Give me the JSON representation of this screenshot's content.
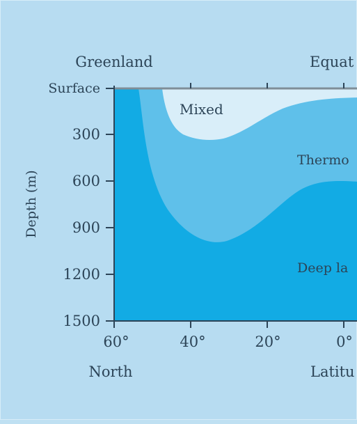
{
  "top_labels": {
    "left": "Greenland",
    "right": "Equat"
  },
  "y_axis": {
    "label": "Depth (m)",
    "ticks": [
      "Surface",
      "300",
      "600",
      "900",
      "1200",
      "1500"
    ]
  },
  "x_axis": {
    "ticks": [
      "60°",
      "40°",
      "20°",
      "0°"
    ],
    "bottom_left": "North",
    "bottom_right": "Latitu"
  },
  "layers": [
    {
      "name": "mixed",
      "label": "Mixed",
      "color": "#d9eef9"
    },
    {
      "name": "thermocline",
      "label": "Thermo",
      "color": "#5fc0ea"
    },
    {
      "name": "deep",
      "label": "Deep la",
      "color": "#12abe4"
    }
  ],
  "colors": {
    "background": "#b7dcf1",
    "axis": "#2c4457",
    "surface_line": "#7f8e98"
  }
}
